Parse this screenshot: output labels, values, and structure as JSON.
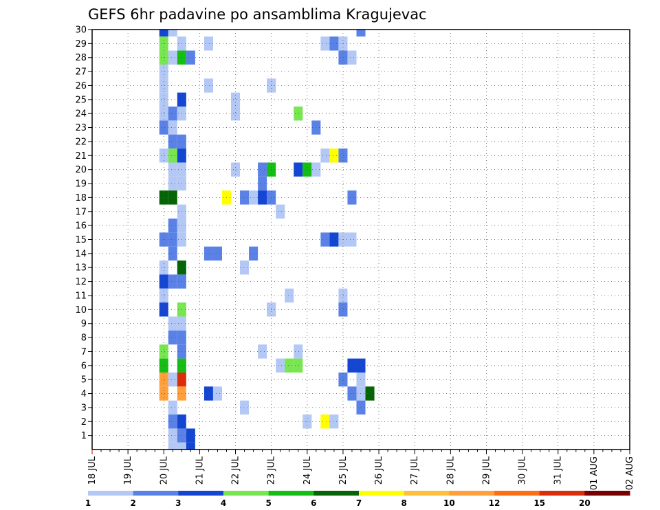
{
  "chart_data": {
    "type": "heatmap",
    "title": "GEFS 6hr padavine po ansamblima Kragujevac",
    "x_labels": [
      "18 JUL",
      "19 JUL",
      "20 JUL",
      "21 JUL",
      "22 JUL",
      "23 JUL",
      "24 JUL",
      "25 JUL",
      "26 JUL",
      "27 JUL",
      "28 JUL",
      "29 JUL",
      "30 JUL",
      "31 JUL",
      "01 AUG",
      "02 AUG"
    ],
    "y_labels": [
      1,
      2,
      3,
      4,
      5,
      6,
      7,
      8,
      9,
      10,
      11,
      12,
      13,
      14,
      15,
      16,
      17,
      18,
      19,
      20,
      21,
      22,
      23,
      24,
      25,
      26,
      27,
      28,
      29,
      30
    ],
    "grid": true,
    "colorbar": {
      "ticks": [
        "1",
        "2",
        "3",
        "4",
        "5",
        "6",
        "7",
        "8",
        "10",
        "12",
        "15",
        "20"
      ],
      "colors": [
        "#b4c8f5",
        "#5a82e6",
        "#1446d2",
        "#78e650",
        "#14be14",
        "#056405",
        "#ffff00",
        "#ffbe3c",
        "#ffa03c",
        "#ff6e14",
        "#dc2d0a",
        "#780000"
      ]
    },
    "cells": [
      {
        "t": 8,
        "m": 30,
        "c": 2
      },
      {
        "t": 9,
        "m": 30,
        "c": 0
      },
      {
        "t": 30,
        "m": 30,
        "c": 1
      },
      {
        "t": 8,
        "m": 29,
        "c": 3
      },
      {
        "t": 10,
        "m": 29,
        "c": 0
      },
      {
        "t": 13,
        "m": 29,
        "c": 0
      },
      {
        "t": 26,
        "m": 29,
        "c": 0
      },
      {
        "t": 27,
        "m": 29,
        "c": 1
      },
      {
        "t": 28,
        "m": 29,
        "c": 0
      },
      {
        "t": 8,
        "m": 28,
        "c": 3
      },
      {
        "t": 9,
        "m": 28,
        "c": 0
      },
      {
        "t": 10,
        "m": 28,
        "c": 4
      },
      {
        "t": 11,
        "m": 28,
        "c": 1
      },
      {
        "t": 28,
        "m": 28,
        "c": 1
      },
      {
        "t": 29,
        "m": 28,
        "c": 0
      },
      {
        "t": 8,
        "m": 27,
        "c": 0
      },
      {
        "t": 8,
        "m": 26,
        "c": 0
      },
      {
        "t": 13,
        "m": 26,
        "c": 0
      },
      {
        "t": 20,
        "m": 26,
        "c": 0
      },
      {
        "t": 8,
        "m": 25,
        "c": 0
      },
      {
        "t": 10,
        "m": 25,
        "c": 2
      },
      {
        "t": 16,
        "m": 25,
        "c": 0
      },
      {
        "t": 8,
        "m": 24,
        "c": 0
      },
      {
        "t": 9,
        "m": 24,
        "c": 1
      },
      {
        "t": 10,
        "m": 24,
        "c": 0
      },
      {
        "t": 16,
        "m": 24,
        "c": 0
      },
      {
        "t": 23,
        "m": 24,
        "c": 3
      },
      {
        "t": 8,
        "m": 23,
        "c": 1
      },
      {
        "t": 9,
        "m": 23,
        "c": 0
      },
      {
        "t": 25,
        "m": 23,
        "c": 1
      },
      {
        "t": 9,
        "m": 22,
        "c": 1
      },
      {
        "t": 10,
        "m": 22,
        "c": 1
      },
      {
        "t": 8,
        "m": 21,
        "c": 0
      },
      {
        "t": 9,
        "m": 21,
        "c": 3
      },
      {
        "t": 10,
        "m": 21,
        "c": 2
      },
      {
        "t": 26,
        "m": 21,
        "c": 0
      },
      {
        "t": 27,
        "m": 21,
        "c": 6
      },
      {
        "t": 28,
        "m": 21,
        "c": 1
      },
      {
        "t": 9,
        "m": 20,
        "c": 0
      },
      {
        "t": 10,
        "m": 20,
        "c": 0
      },
      {
        "t": 16,
        "m": 20,
        "c": 0
      },
      {
        "t": 19,
        "m": 20,
        "c": 1
      },
      {
        "t": 20,
        "m": 20,
        "c": 4
      },
      {
        "t": 23,
        "m": 20,
        "c": 2
      },
      {
        "t": 24,
        "m": 20,
        "c": 4
      },
      {
        "t": 25,
        "m": 20,
        "c": 0
      },
      {
        "t": 9,
        "m": 19,
        "c": 0
      },
      {
        "t": 10,
        "m": 19,
        "c": 0
      },
      {
        "t": 19,
        "m": 19,
        "c": 1
      },
      {
        "t": 8,
        "m": 18,
        "c": 5
      },
      {
        "t": 9,
        "m": 18,
        "c": 5
      },
      {
        "t": 15,
        "m": 18,
        "c": 6
      },
      {
        "t": 17,
        "m": 18,
        "c": 1
      },
      {
        "t": 18,
        "m": 18,
        "c": 0
      },
      {
        "t": 19,
        "m": 18,
        "c": 2
      },
      {
        "t": 20,
        "m": 18,
        "c": 1
      },
      {
        "t": 29,
        "m": 18,
        "c": 1
      },
      {
        "t": 10,
        "m": 17,
        "c": 0
      },
      {
        "t": 21,
        "m": 17,
        "c": 0
      },
      {
        "t": 9,
        "m": 16,
        "c": 1
      },
      {
        "t": 10,
        "m": 16,
        "c": 0
      },
      {
        "t": 8,
        "m": 15,
        "c": 1
      },
      {
        "t": 9,
        "m": 15,
        "c": 1
      },
      {
        "t": 10,
        "m": 15,
        "c": 0
      },
      {
        "t": 26,
        "m": 15,
        "c": 1
      },
      {
        "t": 27,
        "m": 15,
        "c": 2
      },
      {
        "t": 28,
        "m": 15,
        "c": 0
      },
      {
        "t": 29,
        "m": 15,
        "c": 0
      },
      {
        "t": 9,
        "m": 14,
        "c": 1
      },
      {
        "t": 13,
        "m": 14,
        "c": 1
      },
      {
        "t": 14,
        "m": 14,
        "c": 1
      },
      {
        "t": 18,
        "m": 14,
        "c": 1
      },
      {
        "t": 8,
        "m": 13,
        "c": 0
      },
      {
        "t": 10,
        "m": 13,
        "c": 5
      },
      {
        "t": 17,
        "m": 13,
        "c": 0
      },
      {
        "t": 8,
        "m": 12,
        "c": 2
      },
      {
        "t": 9,
        "m": 12,
        "c": 1
      },
      {
        "t": 10,
        "m": 12,
        "c": 1
      },
      {
        "t": 8,
        "m": 11,
        "c": 0
      },
      {
        "t": 22,
        "m": 11,
        "c": 0
      },
      {
        "t": 28,
        "m": 11,
        "c": 0
      },
      {
        "t": 8,
        "m": 10,
        "c": 2
      },
      {
        "t": 10,
        "m": 10,
        "c": 3
      },
      {
        "t": 20,
        "m": 10,
        "c": 0
      },
      {
        "t": 28,
        "m": 10,
        "c": 1
      },
      {
        "t": 9,
        "m": 9,
        "c": 0
      },
      {
        "t": 10,
        "m": 9,
        "c": 0
      },
      {
        "t": 9,
        "m": 8,
        "c": 1
      },
      {
        "t": 10,
        "m": 8,
        "c": 1
      },
      {
        "t": 8,
        "m": 7,
        "c": 3
      },
      {
        "t": 10,
        "m": 7,
        "c": 1
      },
      {
        "t": 19,
        "m": 7,
        "c": 0
      },
      {
        "t": 23,
        "m": 7,
        "c": 0
      },
      {
        "t": 8,
        "m": 6,
        "c": 4
      },
      {
        "t": 10,
        "m": 6,
        "c": 4
      },
      {
        "t": 21,
        "m": 6,
        "c": 0
      },
      {
        "t": 22,
        "m": 6,
        "c": 3
      },
      {
        "t": 23,
        "m": 6,
        "c": 3
      },
      {
        "t": 29,
        "m": 6,
        "c": 2
      },
      {
        "t": 30,
        "m": 6,
        "c": 2
      },
      {
        "t": 8,
        "m": 5,
        "c": 8
      },
      {
        "t": 9,
        "m": 5,
        "c": 0
      },
      {
        "t": 10,
        "m": 5,
        "c": 10
      },
      {
        "t": 28,
        "m": 5,
        "c": 1
      },
      {
        "t": 30,
        "m": 5,
        "c": 0
      },
      {
        "t": 8,
        "m": 4,
        "c": 8
      },
      {
        "t": 10,
        "m": 4,
        "c": 8
      },
      {
        "t": 13,
        "m": 4,
        "c": 2
      },
      {
        "t": 14,
        "m": 4,
        "c": 0
      },
      {
        "t": 29,
        "m": 4,
        "c": 1
      },
      {
        "t": 30,
        "m": 4,
        "c": 0
      },
      {
        "t": 31,
        "m": 4,
        "c": 5
      },
      {
        "t": 9,
        "m": 3,
        "c": 0
      },
      {
        "t": 17,
        "m": 3,
        "c": 0
      },
      {
        "t": 30,
        "m": 3,
        "c": 1
      },
      {
        "t": 9,
        "m": 2,
        "c": 1
      },
      {
        "t": 10,
        "m": 2,
        "c": 2
      },
      {
        "t": 24,
        "m": 2,
        "c": 0
      },
      {
        "t": 26,
        "m": 2,
        "c": 6
      },
      {
        "t": 27,
        "m": 2,
        "c": 0
      },
      {
        "t": 9,
        "m": 1,
        "c": 0
      },
      {
        "t": 10,
        "m": 1,
        "c": 1
      },
      {
        "t": 11,
        "m": 1,
        "c": 2
      },
      {
        "t": 9,
        "m": 0,
        "c": 0
      },
      {
        "t": 10,
        "m": 0,
        "c": 0
      },
      {
        "t": 11,
        "m": 0,
        "c": 2
      }
    ]
  }
}
